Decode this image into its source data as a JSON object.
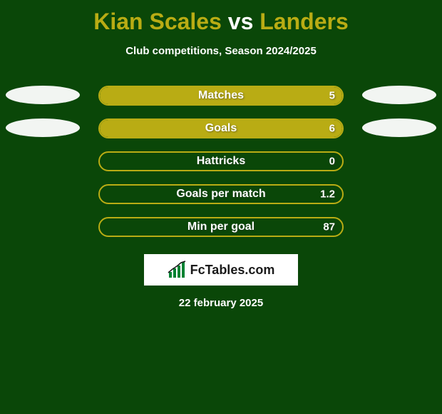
{
  "background_color": "#0a4708",
  "title": {
    "player1": "Kian Scales",
    "vs": " vs ",
    "player2": "Landers",
    "player1_color": "#b9ac14",
    "player2_color": "#b9ac14",
    "vs_color": "#ffffff"
  },
  "subtitle": {
    "text": "Club competitions, Season 2024/2025",
    "color": "#ffffff"
  },
  "bar_border_color": "#b9ac14",
  "bar_fill_color": "#b9ac14",
  "label_color": "#ffffff",
  "value_color": "#ffffff",
  "ellipse_color": "#ffffff",
  "stats": [
    {
      "label": "Matches",
      "value": "5",
      "fill_pct": 100,
      "has_ellipses": true
    },
    {
      "label": "Goals",
      "value": "6",
      "fill_pct": 100,
      "has_ellipses": true
    },
    {
      "label": "Hattricks",
      "value": "0",
      "fill_pct": 0,
      "has_ellipses": false
    },
    {
      "label": "Goals per match",
      "value": "1.2",
      "fill_pct": 0,
      "has_ellipses": false
    },
    {
      "label": "Min per goal",
      "value": "87",
      "fill_pct": 0,
      "has_ellipses": false
    }
  ],
  "logo": {
    "text": "FcTables.com",
    "box_bg": "#ffffff",
    "text_color": "#1a1a1a",
    "icon_color": "#008232"
  },
  "date": {
    "text": "22 february 2025",
    "color": "#ffffff"
  }
}
